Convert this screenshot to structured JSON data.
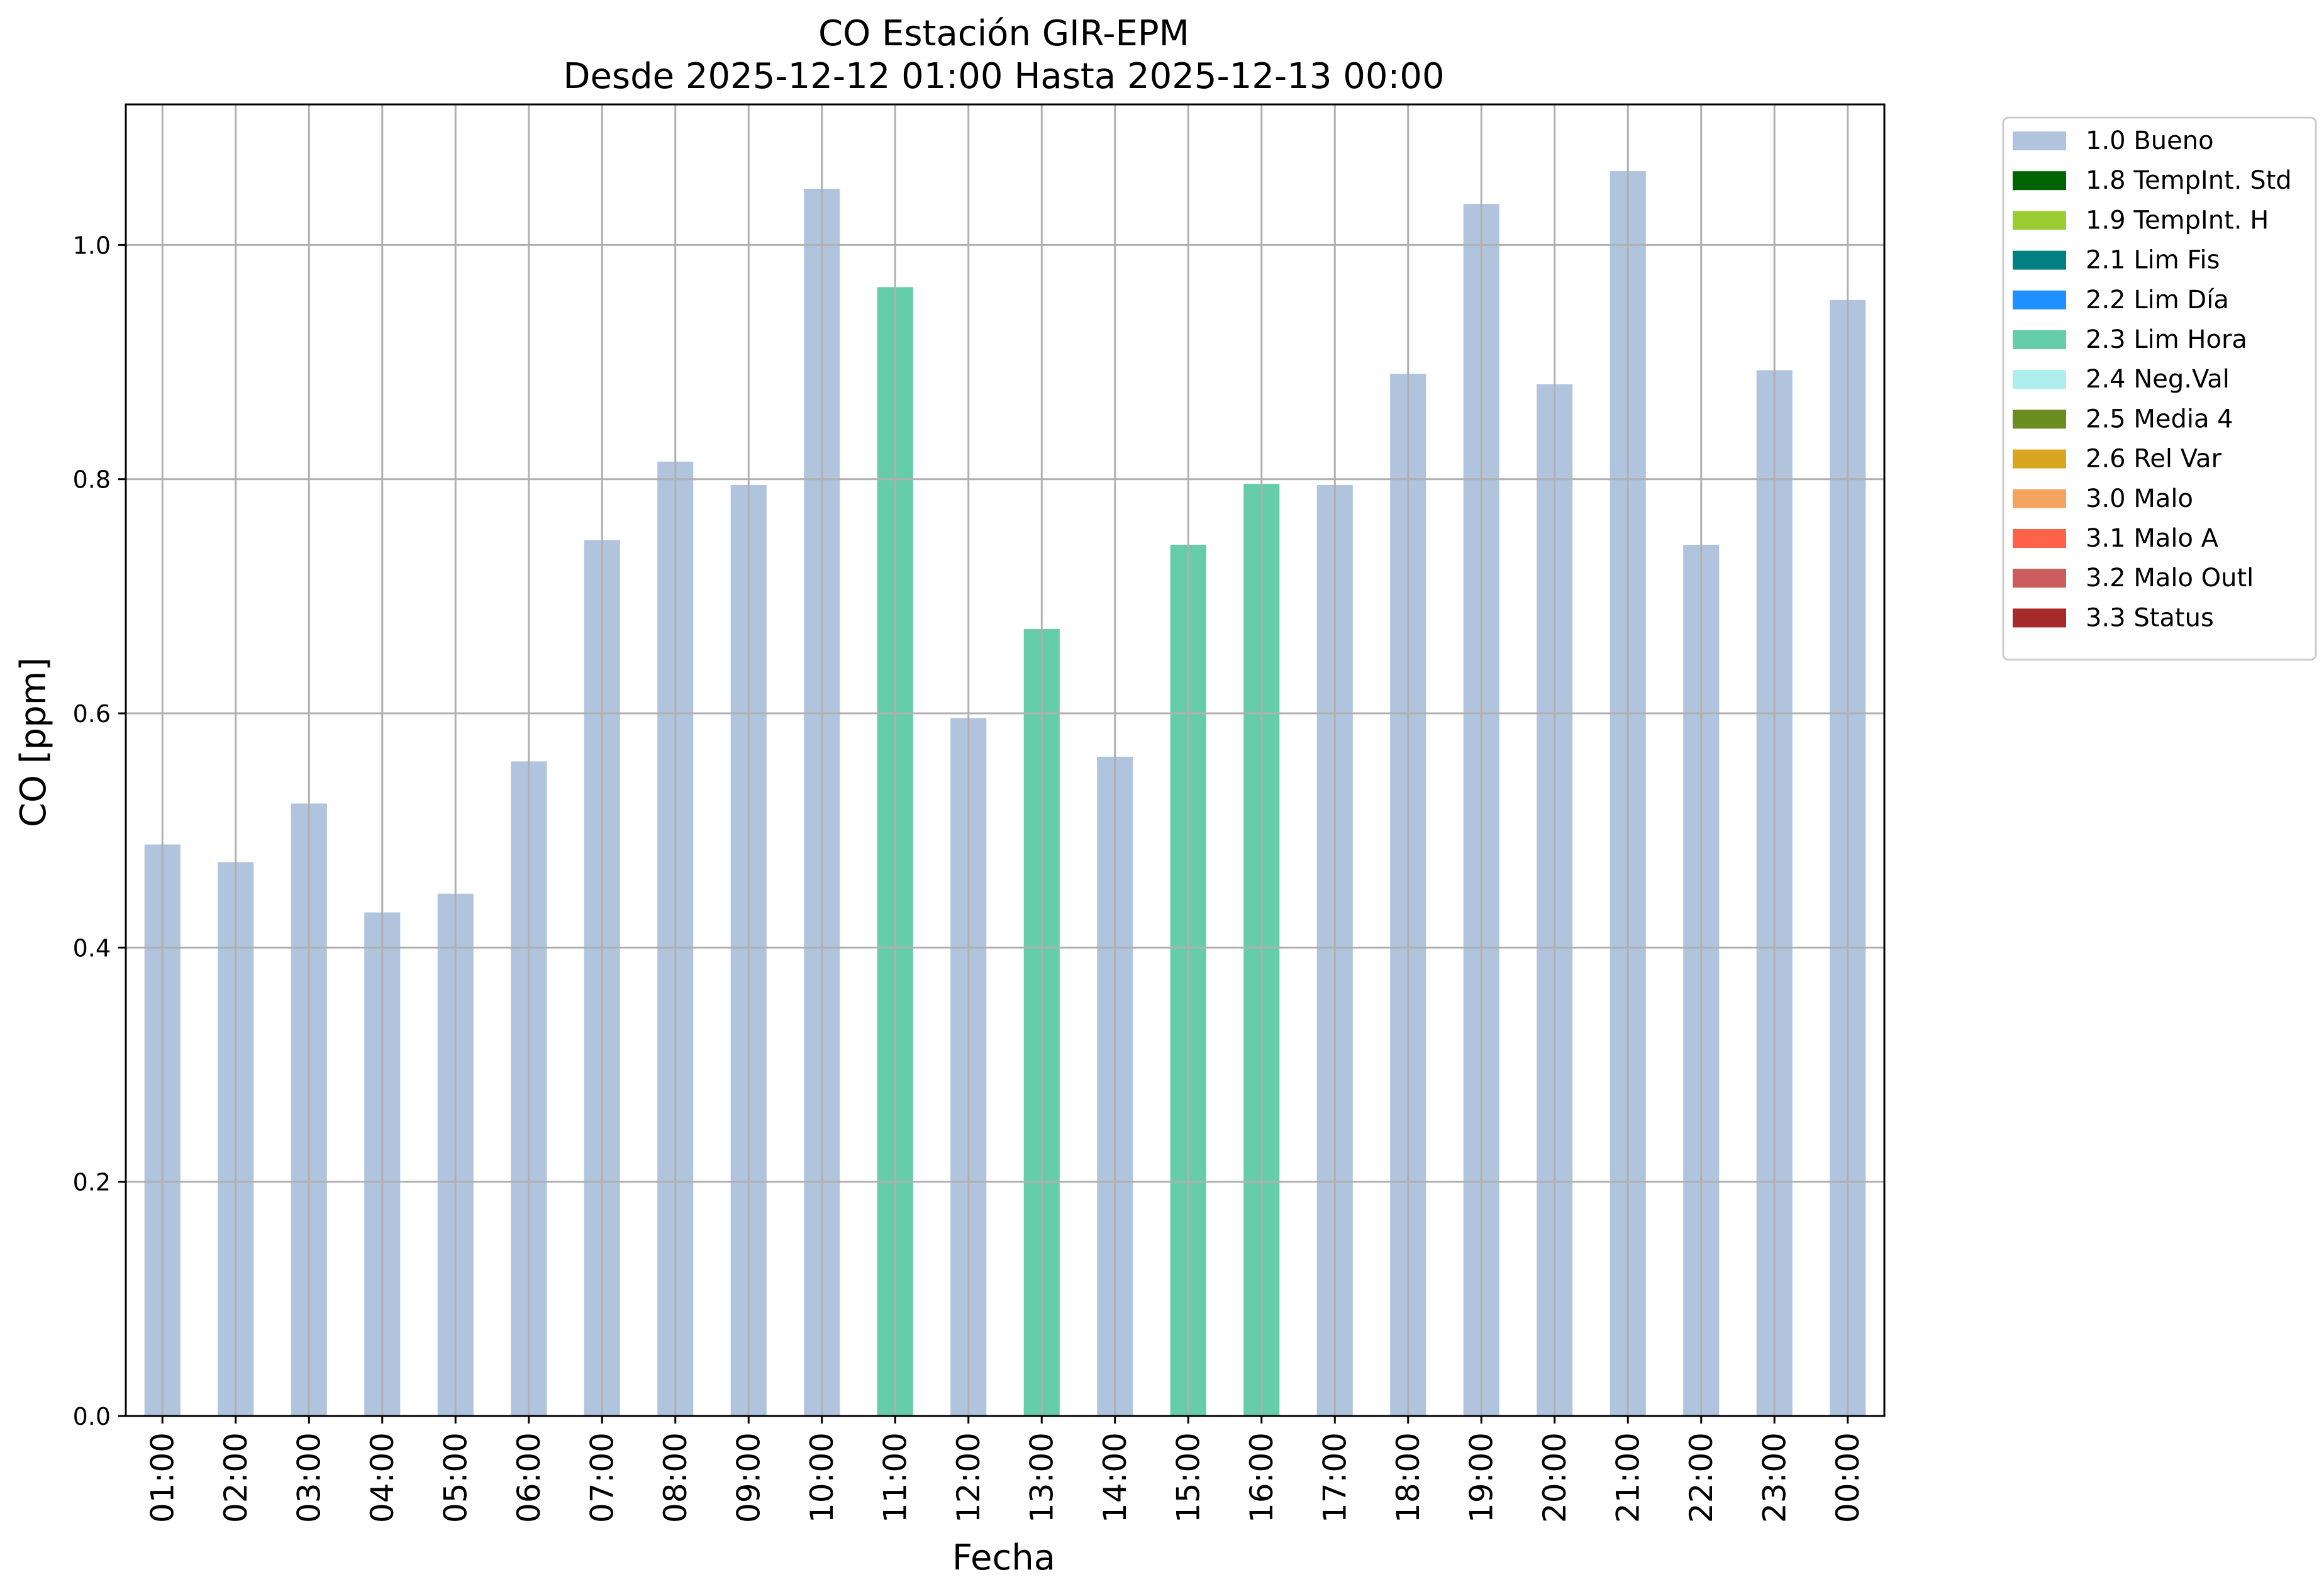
{
  "chart_data": {
    "type": "bar",
    "title": "CO Estación GIR-EPM",
    "subtitle": "Desde 2025-12-12 01:00 Hasta 2025-12-13 00:00",
    "xlabel": "Fecha",
    "ylabel": "CO [ppm]",
    "ylim": [
      0,
      1.12
    ],
    "yticks": [
      "0.0",
      "0.2",
      "0.4",
      "0.6",
      "0.8",
      "1.0"
    ],
    "grid": true,
    "legend_position": "outside-right",
    "categories": [
      "01:00",
      "02:00",
      "03:00",
      "04:00",
      "05:00",
      "06:00",
      "07:00",
      "08:00",
      "09:00",
      "10:00",
      "11:00",
      "12:00",
      "13:00",
      "14:00",
      "15:00",
      "16:00",
      "17:00",
      "18:00",
      "19:00",
      "20:00",
      "21:00",
      "22:00",
      "23:00",
      "00:00"
    ],
    "values": [
      0.488,
      0.473,
      0.523,
      0.43,
      0.446,
      0.559,
      0.748,
      0.815,
      0.795,
      1.048,
      0.964,
      0.596,
      0.672,
      0.563,
      0.744,
      0.796,
      0.795,
      0.89,
      1.035,
      0.881,
      1.063,
      0.744,
      0.893,
      0.953
    ],
    "flags": [
      "1.0 Bueno",
      "1.0 Bueno",
      "1.0 Bueno",
      "1.0 Bueno",
      "1.0 Bueno",
      "1.0 Bueno",
      "1.0 Bueno",
      "1.0 Bueno",
      "1.0 Bueno",
      "1.0 Bueno",
      "2.3 Lim Hora",
      "1.0 Bueno",
      "2.3 Lim Hora",
      "1.0 Bueno",
      "2.3 Lim Hora",
      "2.3 Lim Hora",
      "1.0 Bueno",
      "1.0 Bueno",
      "1.0 Bueno",
      "1.0 Bueno",
      "1.0 Bueno",
      "1.0 Bueno",
      "1.0 Bueno",
      "1.0 Bueno"
    ],
    "legend": [
      {
        "label": "1.0 Bueno",
        "color": "#b0c4de"
      },
      {
        "label": "1.8 TempInt. Std",
        "color": "#006400"
      },
      {
        "label": "1.9 TempInt. H",
        "color": "#9acd32"
      },
      {
        "label": "2.1 Lim Fis",
        "color": "#008080"
      },
      {
        "label": "2.2 Lim Día",
        "color": "#1e90ff"
      },
      {
        "label": "2.3 Lim Hora",
        "color": "#66cdaa"
      },
      {
        "label": "2.4 Neg.Val",
        "color": "#afeeee"
      },
      {
        "label": "2.5 Media 4",
        "color": "#6b8e23"
      },
      {
        "label": "2.6 Rel Var",
        "color": "#daa520"
      },
      {
        "label": "3.0 Malo",
        "color": "#f4a460"
      },
      {
        "label": "3.1 Malo A",
        "color": "#ff6347"
      },
      {
        "label": "3.2 Malo Outl",
        "color": "#cd5c5c"
      },
      {
        "label": "3.3 Status",
        "color": "#a52a2a"
      }
    ]
  }
}
